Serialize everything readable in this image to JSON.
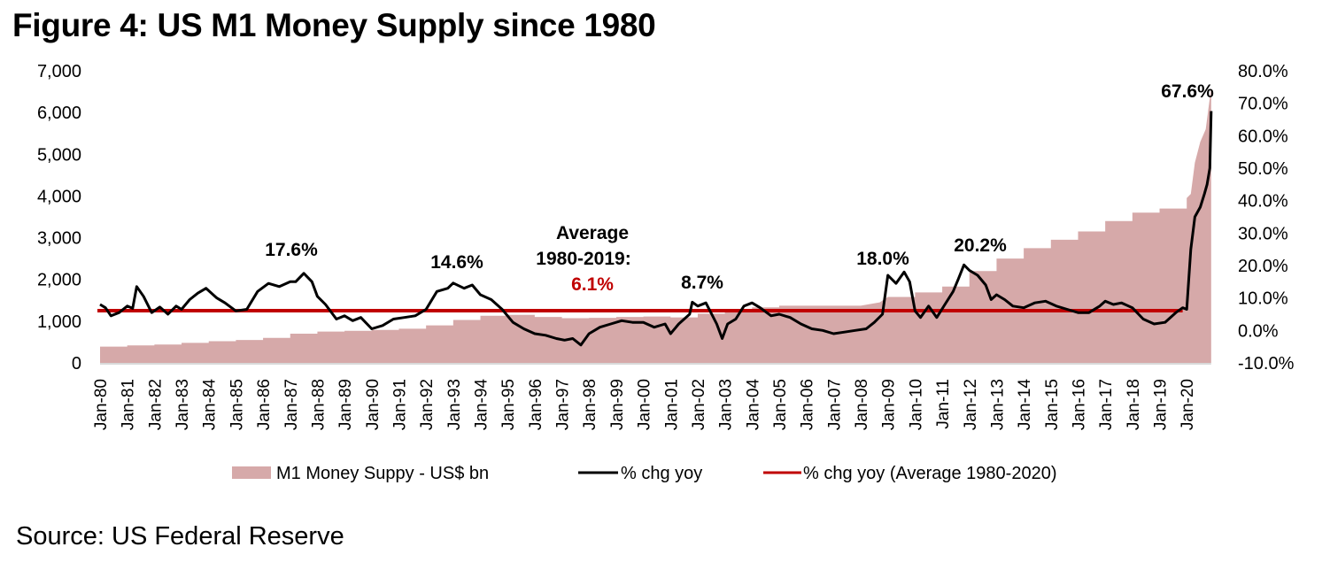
{
  "figure": {
    "title": "Figure 4: US M1 Money Supply since 1980",
    "source": "Source: US Federal Reserve"
  },
  "colors": {
    "area": "#d6a9a9",
    "line": "#000000",
    "average": "#c00000"
  },
  "chart_data": {
    "type": "area+line",
    "title": "Figure 4: US M1 Money Supply since 1980",
    "x_tick_labels": [
      "Jan-80",
      "Jan-81",
      "Jan-82",
      "Jan-83",
      "Jan-84",
      "Jan-85",
      "Jan-86",
      "Jan-87",
      "Jan-88",
      "Jan-89",
      "Jan-90",
      "Jan-91",
      "Jan-92",
      "Jan-93",
      "Jan-94",
      "Jan-95",
      "Jan-96",
      "Jan-97",
      "Jan-98",
      "Jan-99",
      "Jan-00",
      "Jan-01",
      "Jan-02",
      "Jan-03",
      "Jan-04",
      "Jan-05",
      "Jan-06",
      "Jan-07",
      "Jan-08",
      "Jan-09",
      "Jan-10",
      "Jan-11",
      "Jan-12",
      "Jan-13",
      "Jan-14",
      "Jan-15",
      "Jan-16",
      "Jan-17",
      "Jan-18",
      "Jan-19",
      "Jan-20"
    ],
    "x_range": [
      1980.0,
      2020.9
    ],
    "y_left": {
      "label": "",
      "range": [
        0,
        7000
      ],
      "tick_labels": [
        "0",
        "1,000",
        "2,000",
        "3,000",
        "4,000",
        "5,000",
        "6,000",
        "7,000"
      ],
      "tick_values": [
        0,
        1000,
        2000,
        3000,
        4000,
        5000,
        6000,
        7000
      ]
    },
    "y_right": {
      "label": "",
      "range": [
        -10,
        80
      ],
      "tick_labels": [
        "-10.0%",
        "0.0%",
        "10.0%",
        "20.0%",
        "30.0%",
        "40.0%",
        "50.0%",
        "60.0%",
        "70.0%",
        "80.0%"
      ],
      "tick_values": [
        -10,
        0,
        10,
        20,
        30,
        40,
        50,
        60,
        70,
        80
      ]
    },
    "grid": false,
    "legend_position": "bottom",
    "series": [
      {
        "name": "M1 Money Suppy - US$ bn",
        "type": "area",
        "axis": "left",
        "x": [
          1980.0,
          1981.0,
          1982.0,
          1983.0,
          1984.0,
          1985.0,
          1986.0,
          1987.0,
          1988.0,
          1989.0,
          1990.0,
          1991.0,
          1992.0,
          1993.0,
          1994.0,
          1995.0,
          1996.0,
          1997.0,
          1998.0,
          1999.0,
          2000.0,
          2001.0,
          2002.0,
          2003.0,
          2004.0,
          2005.0,
          2006.0,
          2007.0,
          2008.0,
          2008.7,
          2009.0,
          2010.0,
          2011.0,
          2012.0,
          2013.0,
          2014.0,
          2015.0,
          2016.0,
          2017.0,
          2018.0,
          2019.0,
          2020.0,
          2020.15,
          2020.3,
          2020.5,
          2020.7,
          2020.9
        ],
        "values": [
          390,
          420,
          440,
          480,
          520,
          550,
          600,
          700,
          750,
          770,
          790,
          820,
          900,
          1030,
          1130,
          1150,
          1100,
          1070,
          1080,
          1100,
          1110,
          1090,
          1180,
          1230,
          1330,
          1370,
          1370,
          1370,
          1370,
          1450,
          1580,
          1690,
          1830,
          2200,
          2500,
          2750,
          2950,
          3150,
          3400,
          3600,
          3700,
          3950,
          4050,
          4800,
          5300,
          5600,
          6600
        ]
      },
      {
        "name": "% chg yoy",
        "type": "line",
        "axis": "right",
        "x": [
          1980.0,
          1980.2,
          1980.4,
          1980.7,
          1981.0,
          1981.2,
          1981.35,
          1981.6,
          1981.9,
          1982.2,
          1982.5,
          1982.8,
          1983.0,
          1983.3,
          1983.6,
          1983.9,
          1984.3,
          1984.6,
          1985.0,
          1985.4,
          1985.8,
          1986.2,
          1986.6,
          1987.0,
          1987.2,
          1987.5,
          1987.8,
          1988.0,
          1988.3,
          1988.7,
          1989.0,
          1989.3,
          1989.6,
          1990.0,
          1990.4,
          1990.8,
          1991.2,
          1991.6,
          1992.0,
          1992.4,
          1992.8,
          1993.0,
          1993.4,
          1993.7,
          1994.0,
          1994.4,
          1994.8,
          1995.2,
          1995.6,
          1996.0,
          1996.4,
          1996.8,
          1997.1,
          1997.4,
          1997.7,
          1998.0,
          1998.4,
          1998.8,
          1999.2,
          1999.6,
          2000.0,
          2000.4,
          2000.8,
          2001.0,
          2001.3,
          2001.7,
          2001.8,
          2002.0,
          2002.3,
          2002.7,
          2002.9,
          2003.1,
          2003.4,
          2003.7,
          2004.0,
          2004.3,
          2004.7,
          2005.0,
          2005.4,
          2005.8,
          2006.2,
          2006.6,
          2007.0,
          2007.4,
          2007.8,
          2008.2,
          2008.5,
          2008.8,
          2009.0,
          2009.3,
          2009.6,
          2009.8,
          2010.0,
          2010.2,
          2010.5,
          2010.8,
          2011.1,
          2011.4,
          2011.6,
          2011.8,
          2012.0,
          2012.3,
          2012.6,
          2012.8,
          2013.0,
          2013.3,
          2013.6,
          2014.0,
          2014.4,
          2014.8,
          2015.2,
          2015.6,
          2016.0,
          2016.4,
          2016.8,
          2017.0,
          2017.3,
          2017.6,
          2018.0,
          2018.4,
          2018.8,
          2019.2,
          2019.6,
          2019.85,
          2020.0,
          2020.15,
          2020.3,
          2020.5,
          2020.65,
          2020.75,
          2020.85,
          2020.9
        ],
        "values": [
          8.0,
          7.0,
          4.5,
          5.5,
          7.5,
          6.8,
          13.5,
          10.5,
          5.5,
          7.2,
          5.0,
          7.5,
          6.5,
          9.5,
          11.5,
          13.0,
          10.0,
          8.5,
          6.0,
          6.5,
          12.0,
          14.5,
          13.5,
          15.0,
          15.0,
          17.6,
          15.0,
          10.5,
          8.0,
          3.5,
          4.5,
          3.0,
          4.0,
          0.5,
          1.5,
          3.5,
          4.0,
          4.5,
          6.5,
          12.0,
          13.0,
          14.6,
          13.0,
          14.0,
          11.0,
          9.5,
          6.5,
          2.5,
          0.5,
          -1.0,
          -1.5,
          -2.5,
          -3.0,
          -2.5,
          -4.5,
          -1.0,
          1.0,
          2.0,
          3.0,
          2.5,
          2.5,
          1.0,
          2.0,
          -1.0,
          2.0,
          5.0,
          8.7,
          7.5,
          8.5,
          2.0,
          -2.5,
          2.0,
          3.5,
          7.5,
          8.5,
          7.0,
          4.5,
          5.0,
          4.0,
          2.0,
          0.5,
          0.0,
          -1.0,
          -0.5,
          0.0,
          0.5,
          2.5,
          5.0,
          17.0,
          14.5,
          18.0,
          15.0,
          6.0,
          4.0,
          7.5,
          4.0,
          8.0,
          12.0,
          16.0,
          20.2,
          18.5,
          17.0,
          14.0,
          9.5,
          11.0,
          9.5,
          7.5,
          7.0,
          8.5,
          9.0,
          7.5,
          6.5,
          5.5,
          5.5,
          7.5,
          9.0,
          8.0,
          8.5,
          7.0,
          3.5,
          2.0,
          2.5,
          5.5,
          7.0,
          6.5,
          25.0,
          35.0,
          38.0,
          42.0,
          45.0,
          50.0,
          67.6
        ]
      },
      {
        "name": "% chg yoy (Average 1980-2020)",
        "type": "line",
        "axis": "right",
        "x": [
          1980.0,
          2019.85
        ],
        "values": [
          6.1,
          6.1
        ]
      }
    ],
    "annotations": [
      {
        "text": "17.6%",
        "x": 1987.5,
        "y": 17.6
      },
      {
        "text": "14.6%",
        "x": 1993.0,
        "y": 14.6
      },
      {
        "text": "8.7%",
        "x": 2001.8,
        "y": 8.7
      },
      {
        "text": "18.0%",
        "x": 2009.6,
        "y": 18.0
      },
      {
        "text": "20.2%",
        "x": 2011.8,
        "y": 20.2
      },
      {
        "text": "67.6%",
        "x": 2020.9,
        "y": 67.6
      }
    ],
    "average_label": {
      "line1": "Average",
      "line2": "1980-2019:",
      "value": "6.1%"
    }
  }
}
